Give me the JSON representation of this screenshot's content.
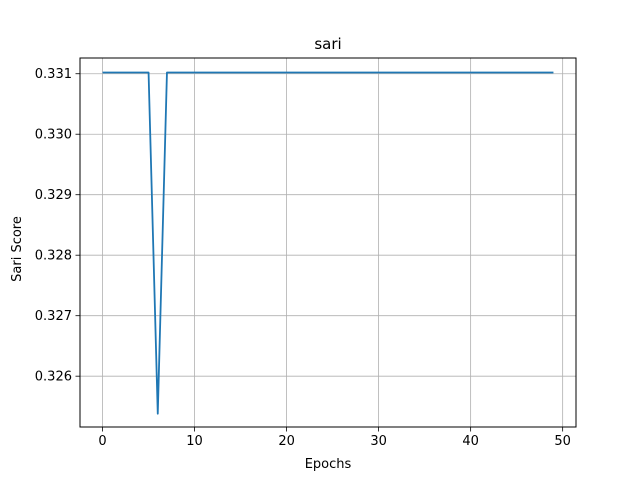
{
  "chart_data": {
    "type": "line",
    "title": "sari",
    "xlabel": "Epochs",
    "ylabel": "Sari Score",
    "xlim": [
      -2.45,
      51.45
    ],
    "ylim": [
      0.32516,
      0.33126
    ],
    "xticks": [
      0,
      10,
      20,
      30,
      40,
      50
    ],
    "yticks": [
      0.326,
      0.327,
      0.328,
      0.329,
      0.33,
      0.331
    ],
    "ytick_labels": [
      "0.326",
      "0.327",
      "0.328",
      "0.329",
      "0.330",
      "0.331"
    ],
    "grid": true,
    "line_color": "#1f77b4",
    "series": [
      {
        "x": [
          0,
          1,
          2,
          3,
          4,
          5,
          6,
          7,
          8,
          9,
          10,
          11,
          12,
          13,
          14,
          15,
          16,
          17,
          18,
          19,
          20,
          21,
          22,
          23,
          24,
          25,
          26,
          27,
          28,
          29,
          30,
          31,
          32,
          33,
          34,
          35,
          36,
          37,
          38,
          39,
          40,
          41,
          42,
          43,
          44,
          45,
          46,
          47,
          48,
          49
        ],
        "y": [
          0.33102,
          0.33102,
          0.33102,
          0.33102,
          0.33102,
          0.33102,
          0.32538,
          0.33102,
          0.33102,
          0.33102,
          0.33102,
          0.33102,
          0.33102,
          0.33102,
          0.33102,
          0.33102,
          0.33102,
          0.33102,
          0.33102,
          0.33102,
          0.33102,
          0.33102,
          0.33102,
          0.33102,
          0.33102,
          0.33102,
          0.33102,
          0.33102,
          0.33102,
          0.33102,
          0.33102,
          0.33102,
          0.33102,
          0.33102,
          0.33102,
          0.33102,
          0.33102,
          0.33102,
          0.33102,
          0.33102,
          0.33102,
          0.33102,
          0.33102,
          0.33102,
          0.33102,
          0.33102,
          0.33102,
          0.33102,
          0.33102,
          0.33102
        ]
      }
    ]
  }
}
